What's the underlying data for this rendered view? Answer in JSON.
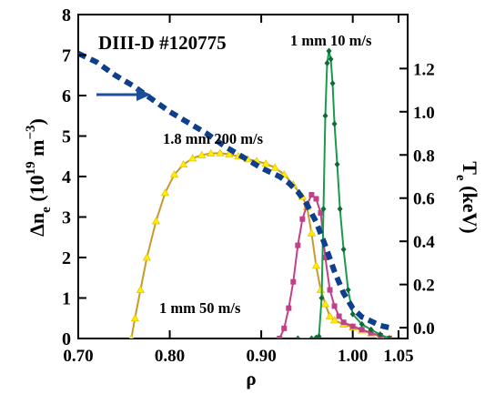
{
  "chart_data": {
    "type": "line",
    "title": "DIII-D    #120775",
    "xlabel": "ρ",
    "ylabel_left": [
      "Δn",
      "e",
      " (10",
      "19",
      " m",
      "−3",
      ")"
    ],
    "ylabel_right": [
      "T",
      "e",
      " (keV)"
    ],
    "xlim": [
      0.7,
      1.06
    ],
    "ylim_left": [
      0,
      8
    ],
    "ylim_right": [
      -0.05,
      1.45
    ],
    "x_ticks": [
      "0.70",
      "0.80",
      "0.90",
      "1.00",
      "1.05"
    ],
    "x_tick_values": [
      0.7,
      0.8,
      0.9,
      1.0,
      1.05
    ],
    "y_left_ticks": [
      "0",
      "1",
      "2",
      "3",
      "4",
      "5",
      "6",
      "7",
      "8"
    ],
    "y_left_tick_values": [
      0,
      1,
      2,
      3,
      4,
      5,
      6,
      7,
      8
    ],
    "y_right_ticks": [
      "0.0",
      "0.2",
      "0.4",
      "0.6",
      "0.8",
      "1.0",
      "1.2"
    ],
    "y_right_tick_values": [
      0.0,
      0.2,
      0.4,
      0.6,
      0.8,
      1.0,
      1.2
    ],
    "annotations": {
      "green": "1 mm 10 m/s",
      "gold": "1.8 mm 200 m/s",
      "magenta": "1 mm 50 m/s"
    },
    "colors": {
      "green": "#1a9a4e",
      "gold": "#c89a2e",
      "yellow": "#ffee00",
      "magenta": "#c0408a",
      "navy": "#0d3f8c",
      "arrow": "#1b4f9c",
      "axis": "#000000"
    },
    "series": [
      {
        "name": "1 mm 10 m/s",
        "axis": "left",
        "x": [
          0.94,
          0.955,
          0.96,
          0.963,
          0.966,
          0.968,
          0.97,
          0.972,
          0.974,
          0.976,
          0.978,
          0.98,
          0.983,
          0.986,
          0.99,
          0.995,
          1.0,
          1.01,
          1.02,
          1.03,
          1.04
        ],
        "y": [
          0,
          0,
          0.02,
          0.05,
          1.0,
          3.2,
          5.5,
          6.8,
          7.1,
          6.9,
          6.3,
          5.3,
          4.3,
          3.2,
          2.2,
          1.2,
          0.6,
          0.35,
          0.22,
          0.1,
          0
        ]
      },
      {
        "name": "1.8 mm 200 m/s",
        "axis": "left",
        "x": [
          0.758,
          0.762,
          0.768,
          0.775,
          0.785,
          0.795,
          0.805,
          0.815,
          0.825,
          0.835,
          0.845,
          0.855,
          0.865,
          0.875,
          0.885,
          0.895,
          0.905,
          0.915,
          0.925,
          0.935,
          0.945,
          0.95,
          0.955,
          0.96,
          0.965,
          0.97,
          0.975,
          0.98,
          0.99,
          1.0,
          1.01,
          1.02,
          1.03,
          1.04
        ],
        "y": [
          0,
          0.5,
          1.2,
          2.0,
          2.9,
          3.6,
          4.05,
          4.3,
          4.45,
          4.53,
          4.57,
          4.58,
          4.55,
          4.5,
          4.43,
          4.38,
          4.32,
          4.22,
          4.05,
          3.8,
          3.5,
          3.25,
          2.6,
          1.8,
          1.2,
          0.85,
          0.55,
          0.45,
          0.35,
          0.28,
          0.2,
          0.12,
          0.06,
          0
        ]
      },
      {
        "name": "1 mm 50 m/s",
        "axis": "left",
        "x": [
          0.92,
          0.925,
          0.93,
          0.935,
          0.94,
          0.945,
          0.95,
          0.955,
          0.96,
          0.965,
          0.97,
          0.975,
          0.98,
          0.985,
          0.99,
          1.0,
          1.01,
          1.02,
          1.03,
          1.04
        ],
        "y": [
          0,
          0.25,
          0.75,
          1.4,
          2.3,
          2.95,
          3.3,
          3.55,
          3.45,
          3.1,
          2.0,
          1.2,
          0.8,
          0.55,
          0.4,
          0.3,
          0.22,
          0.14,
          0.07,
          0
        ]
      },
      {
        "name": "Te",
        "axis": "right",
        "x": [
          0.7,
          0.72,
          0.74,
          0.76,
          0.78,
          0.8,
          0.82,
          0.84,
          0.86,
          0.88,
          0.9,
          0.91,
          0.92,
          0.93,
          0.94,
          0.95,
          0.96,
          0.97,
          0.98,
          0.99,
          1.0,
          1.01,
          1.02,
          1.03,
          1.04
        ],
        "y": [
          1.27,
          1.23,
          1.17,
          1.12,
          1.06,
          1.0,
          0.95,
          0.9,
          0.84,
          0.79,
          0.74,
          0.72,
          0.7,
          0.67,
          0.63,
          0.57,
          0.49,
          0.38,
          0.26,
          0.16,
          0.09,
          0.05,
          0.03,
          0.01,
          0.0
        ]
      }
    ]
  }
}
